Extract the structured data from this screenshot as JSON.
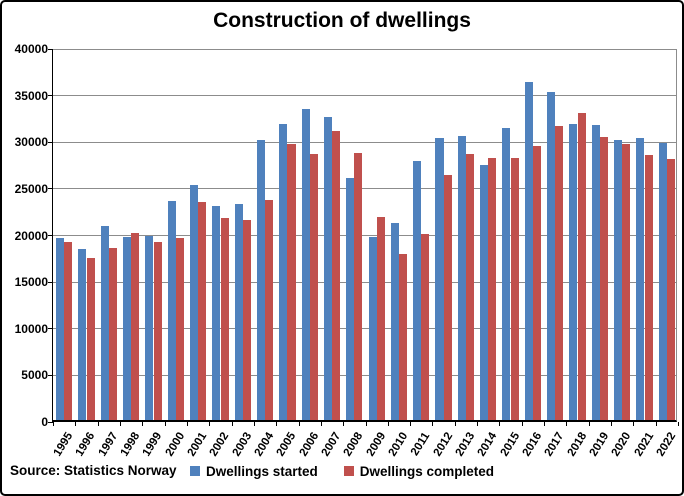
{
  "title": "Construction of dwellings",
  "source": "Source: Statistics Norway",
  "colors": {
    "started": "#4F81BD",
    "completed": "#C0504D",
    "gridline": "#8c8c8c",
    "axis": "#000000"
  },
  "chart_data": {
    "type": "bar",
    "title": "Construction of dwellings",
    "xlabel": "",
    "ylabel": "",
    "categories": [
      "1995",
      "1996",
      "1997",
      "1998",
      "1999",
      "2000",
      "2001",
      "2002",
      "2003",
      "2004",
      "2005",
      "2006",
      "2007",
      "2008",
      "2009",
      "2010",
      "2011",
      "2012",
      "2013",
      "2014",
      "2015",
      "2016",
      "2017",
      "2018",
      "2019",
      "2020",
      "2021",
      "2022"
    ],
    "series": [
      {
        "name": "Dwellings started",
        "color": "#4F81BD",
        "values": [
          19500,
          18300,
          20800,
          19600,
          19700,
          23500,
          25200,
          23000,
          23200,
          30000,
          31700,
          33300,
          32500,
          26000,
          19600,
          21100,
          27800,
          30200,
          30500,
          27300,
          31300,
          36200,
          35200,
          31700,
          31600,
          30000,
          30200,
          29700
        ]
      },
      {
        "name": "Dwellings completed",
        "color": "#C0504D",
        "values": [
          19100,
          17400,
          18400,
          20100,
          19100,
          19500,
          23400,
          21700,
          21400,
          23600,
          29600,
          28500,
          31000,
          28600,
          21800,
          17800,
          20000,
          26300,
          28500,
          28100,
          28100,
          29400,
          31500,
          32900,
          30400,
          29600,
          28400,
          28000
        ]
      }
    ],
    "ylim": [
      0,
      40000
    ],
    "ytick_step": 5000,
    "yticks": [
      0,
      5000,
      10000,
      15000,
      20000,
      25000,
      30000,
      35000,
      40000
    ],
    "grid": true,
    "legend_position": "bottom",
    "source": "Source: Statistics Norway"
  }
}
